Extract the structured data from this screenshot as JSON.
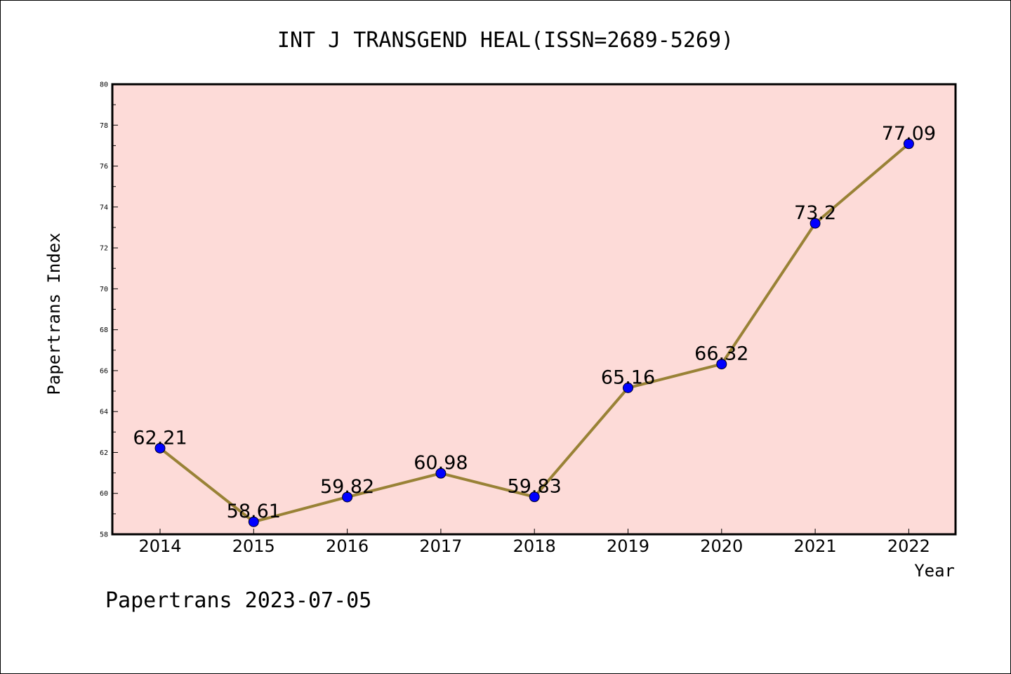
{
  "chart_data": {
    "type": "line",
    "title": "INT J TRANSGEND HEAL(ISSN=2689-5269)",
    "xlabel": "Year",
    "ylabel": "Papertrans Index",
    "categories": [
      "2014",
      "2015",
      "2016",
      "2017",
      "2018",
      "2019",
      "2020",
      "2021",
      "2022"
    ],
    "values": [
      62.21,
      58.61,
      59.82,
      60.98,
      59.83,
      65.16,
      66.32,
      73.2,
      77.09
    ],
    "data_labels": [
      "62.21",
      "58.61",
      "59.82",
      "60.98",
      "59.83",
      "65.16",
      "66.32",
      "73.2",
      "77.09"
    ],
    "ylim": [
      58,
      80
    ],
    "y_ticks": [
      "58",
      "60",
      "62",
      "64",
      "66",
      "68",
      "70",
      "72",
      "74",
      "76",
      "78",
      "80"
    ],
    "grid": false,
    "legend": "none"
  },
  "colors": {
    "plot_background": "#fddbd8",
    "line": "#998236",
    "marker": "#0000ff"
  },
  "footer": "Papertrans 2023-07-05"
}
